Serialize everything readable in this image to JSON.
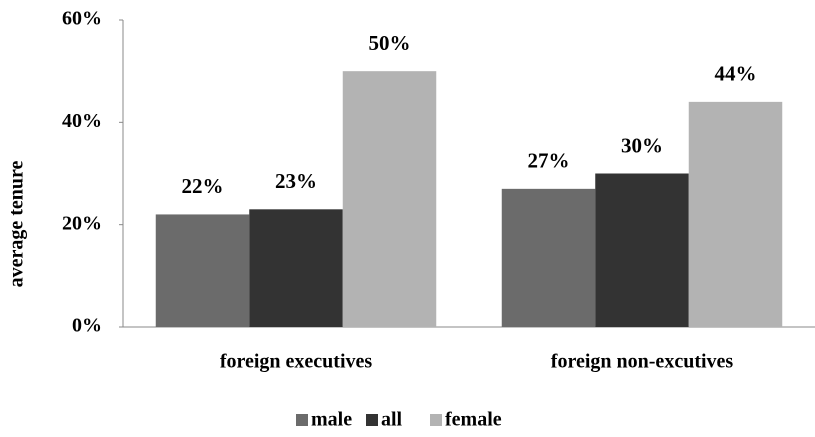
{
  "chart_data": {
    "type": "bar",
    "y_label": "average tenure",
    "categories": [
      "foreign executives",
      "foreign non-excutives"
    ],
    "series": [
      {
        "name": "male",
        "color": "#6b6b6b",
        "values": [
          22,
          27
        ],
        "value_labels": [
          "22%",
          "27%"
        ]
      },
      {
        "name": "all",
        "color": "#333333",
        "values": [
          23,
          30
        ],
        "value_labels": [
          "23%",
          "30%"
        ]
      },
      {
        "name": "female",
        "color": "#b3b3b3",
        "values": [
          50,
          44
        ],
        "value_labels": [
          "50%",
          "44%"
        ]
      }
    ],
    "ylim": [
      0,
      60
    ],
    "yticks": [
      {
        "value": 0,
        "label": "0%"
      },
      {
        "value": 20,
        "label": "20%"
      },
      {
        "value": 40,
        "label": "40%"
      },
      {
        "value": 60,
        "label": "60%"
      }
    ],
    "grid": false,
    "legend": "bottom"
  }
}
